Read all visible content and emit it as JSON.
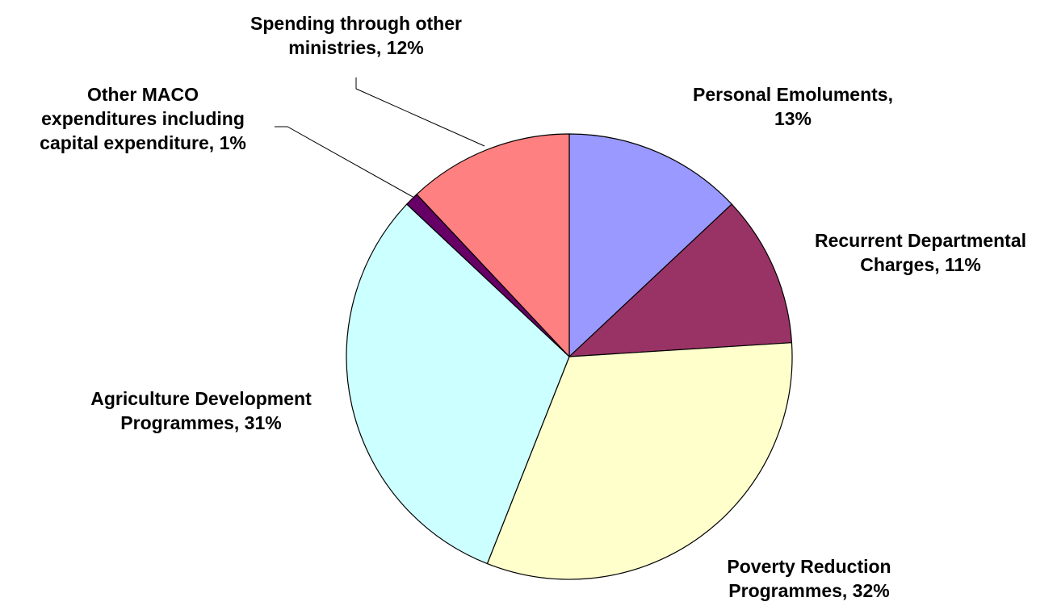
{
  "chart_data": {
    "type": "pie",
    "title": "",
    "start_angle_deg": 0,
    "direction": "clockwise",
    "slices": [
      {
        "name": "Personal Emoluments",
        "value": 13,
        "label_lines": [
          "Personal Emoluments,",
          "13%"
        ],
        "color": "#9999ff"
      },
      {
        "name": "Recurrent Departmental Charges",
        "value": 11,
        "label_lines": [
          "Recurrent Departmental",
          "Charges, 11%"
        ],
        "color": "#993366"
      },
      {
        "name": "Poverty Reduction Programmes",
        "value": 32,
        "label_lines": [
          "Poverty Reduction",
          "Programmes, 32%"
        ],
        "color": "#ffffcc"
      },
      {
        "name": "Agriculture Development Programmes",
        "value": 31,
        "label_lines": [
          "Agriculture Development",
          "Programmes, 31%"
        ],
        "color": "#ccffff"
      },
      {
        "name": "Other MACO expenditures including capital expenditure",
        "value": 1,
        "label_lines": [
          "Other MACO",
          "expenditures including",
          "capital expenditure, 1%"
        ],
        "color": "#660066"
      },
      {
        "name": "Spending through other ministries",
        "value": 12,
        "label_lines": [
          "Spending through other",
          "ministries, 12%"
        ],
        "color": "#ff8080"
      }
    ]
  }
}
